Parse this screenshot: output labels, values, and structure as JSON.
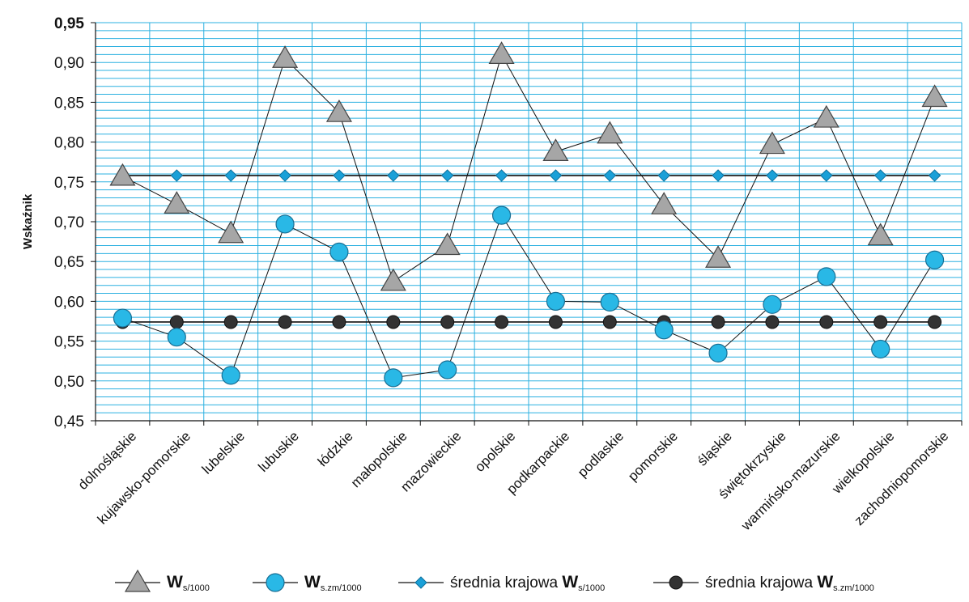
{
  "chart_data": {
    "type": "line",
    "ylabel": "Wskaźnik",
    "xlabel": "",
    "ylim": [
      0.45,
      0.95
    ],
    "y_major_ticks": [
      "0,45",
      "0,50",
      "0,55",
      "0,60",
      "0,65",
      "0,70",
      "0,75",
      "0,80",
      "0,85",
      "0,90",
      "0,95"
    ],
    "y_major_values": [
      0.45,
      0.5,
      0.55,
      0.6,
      0.65,
      0.7,
      0.75,
      0.8,
      0.85,
      0.9,
      0.95
    ],
    "grid": true,
    "legend_position": "bottom",
    "categories": [
      "dolnośląskie",
      "kujawsko-pomorskie",
      "lubelskie",
      "lubuskie",
      "łódzkie",
      "małopolskie",
      "mazowieckie",
      "opolskie",
      "podkarpackie",
      "podlaskie",
      "pomorskie",
      "śląskie",
      "świętokrzyskie",
      "warmińsko-mazurskie",
      "wielkopolskie",
      "zachodniopomorskie"
    ],
    "series": [
      {
        "name_prefix": "",
        "name_main": "W",
        "name_sub": "s/1000",
        "marker": "triangle",
        "color": "#a6a6a6",
        "values": [
          0.757,
          0.722,
          0.685,
          0.905,
          0.837,
          0.625,
          0.67,
          0.91,
          0.788,
          0.81,
          0.721,
          0.654,
          0.797,
          0.83,
          0.682,
          0.856
        ]
      },
      {
        "name_prefix": "",
        "name_main": "W",
        "name_sub": "s.zm/1000",
        "marker": "circle",
        "color": "#29b8e6",
        "values": [
          0.579,
          0.555,
          0.507,
          0.697,
          0.662,
          0.504,
          0.514,
          0.708,
          0.6,
          0.599,
          0.564,
          0.535,
          0.596,
          0.631,
          0.54,
          0.652
        ]
      },
      {
        "name_prefix": "średnia krajowa ",
        "name_main": "W",
        "name_sub": "s/1000",
        "marker": "diamond",
        "color": "#1aa0d8",
        "values": [
          0.758,
          0.758,
          0.758,
          0.758,
          0.758,
          0.758,
          0.758,
          0.758,
          0.758,
          0.758,
          0.758,
          0.758,
          0.758,
          0.758,
          0.758,
          0.758
        ]
      },
      {
        "name_prefix": "średnia krajowa ",
        "name_main": "W",
        "name_sub": "s.zm/1000",
        "marker": "dot",
        "color": "#333333",
        "values": [
          0.574,
          0.574,
          0.574,
          0.574,
          0.574,
          0.574,
          0.574,
          0.574,
          0.574,
          0.574,
          0.574,
          0.574,
          0.574,
          0.574,
          0.574,
          0.574
        ]
      }
    ],
    "colors": {
      "grid": "#2bb0e0",
      "axis": "#111111",
      "line": "#111111"
    }
  }
}
